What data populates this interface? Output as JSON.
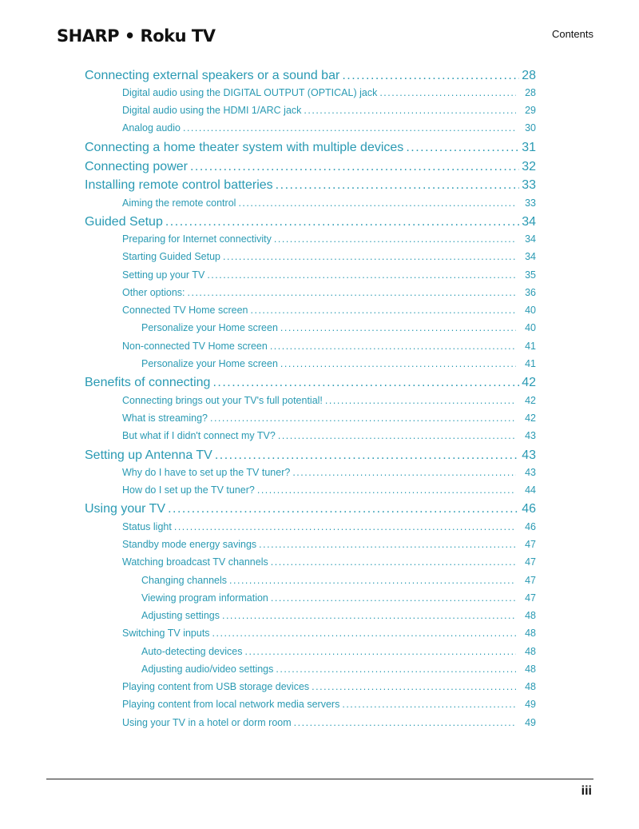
{
  "header": {
    "logo": "SHARP • Roku TV",
    "section": "Contents"
  },
  "footer": {
    "page_number": "iii"
  },
  "accent_color": "#2a9ab3",
  "toc": [
    {
      "level": 1,
      "title": "Connecting external speakers or a sound bar",
      "page": "28"
    },
    {
      "level": 2,
      "title": "Digital audio using the DIGITAL OUTPUT (OPTICAL) jack",
      "page": "28"
    },
    {
      "level": 2,
      "title": "Digital audio using the HDMI 1/ARC jack",
      "page": "29"
    },
    {
      "level": 2,
      "title": "Analog audio",
      "page": "30"
    },
    {
      "level": 1,
      "title": "Connecting a home theater system with multiple devices",
      "page": "31"
    },
    {
      "level": 1,
      "title": "Connecting power",
      "page": "32"
    },
    {
      "level": 1,
      "title": "Installing remote control batteries",
      "page": "33"
    },
    {
      "level": 2,
      "title": "Aiming the remote control",
      "page": "33"
    },
    {
      "level": 1,
      "title": "Guided Setup",
      "page": "34"
    },
    {
      "level": 2,
      "title": "Preparing for Internet connectivity",
      "page": "34"
    },
    {
      "level": 2,
      "title": "Starting Guided Setup",
      "page": "34"
    },
    {
      "level": 2,
      "title": "Setting up your TV",
      "page": "35"
    },
    {
      "level": 2,
      "title": "Other options:",
      "page": "36"
    },
    {
      "level": 2,
      "title": "Connected TV Home screen",
      "page": "40"
    },
    {
      "level": 3,
      "title": "Personalize your Home screen",
      "page": "40"
    },
    {
      "level": 2,
      "title": "Non-connected TV Home screen",
      "page": "41"
    },
    {
      "level": 3,
      "title": "Personalize your Home screen",
      "page": "41"
    },
    {
      "level": 1,
      "title": "Benefits of connecting",
      "page": "42"
    },
    {
      "level": 2,
      "title": "Connecting brings out your TV's full potential!",
      "page": "42"
    },
    {
      "level": 2,
      "title": "What is streaming?",
      "page": "42"
    },
    {
      "level": 2,
      "title": "But what if I didn't connect my TV?",
      "page": "43"
    },
    {
      "level": 1,
      "title": "Setting up Antenna TV",
      "page": "43"
    },
    {
      "level": 2,
      "title": "Why do I have to set up the TV tuner?",
      "page": "43"
    },
    {
      "level": 2,
      "title": "How do I set up the TV tuner?",
      "page": "44"
    },
    {
      "level": 1,
      "title": "Using your TV",
      "page": "46"
    },
    {
      "level": 2,
      "title": "Status light",
      "page": "46"
    },
    {
      "level": 2,
      "title": "Standby mode energy savings",
      "page": "47"
    },
    {
      "level": 2,
      "title": "Watching broadcast TV channels",
      "page": "47"
    },
    {
      "level": 3,
      "title": "Changing channels",
      "page": "47"
    },
    {
      "level": 3,
      "title": "Viewing program information",
      "page": "47"
    },
    {
      "level": 3,
      "title": "Adjusting settings",
      "page": "48"
    },
    {
      "level": 2,
      "title": "Switching TV inputs",
      "page": "48"
    },
    {
      "level": 3,
      "title": "Auto-detecting devices",
      "page": "48"
    },
    {
      "level": 3,
      "title": "Adjusting audio/video settings",
      "page": "48"
    },
    {
      "level": 2,
      "title": "Playing content from USB storage devices",
      "page": "48"
    },
    {
      "level": 2,
      "title": "Playing content from local network media servers",
      "page": "49"
    },
    {
      "level": 2,
      "title": "Using your TV in a hotel or dorm room",
      "page": "49"
    }
  ]
}
